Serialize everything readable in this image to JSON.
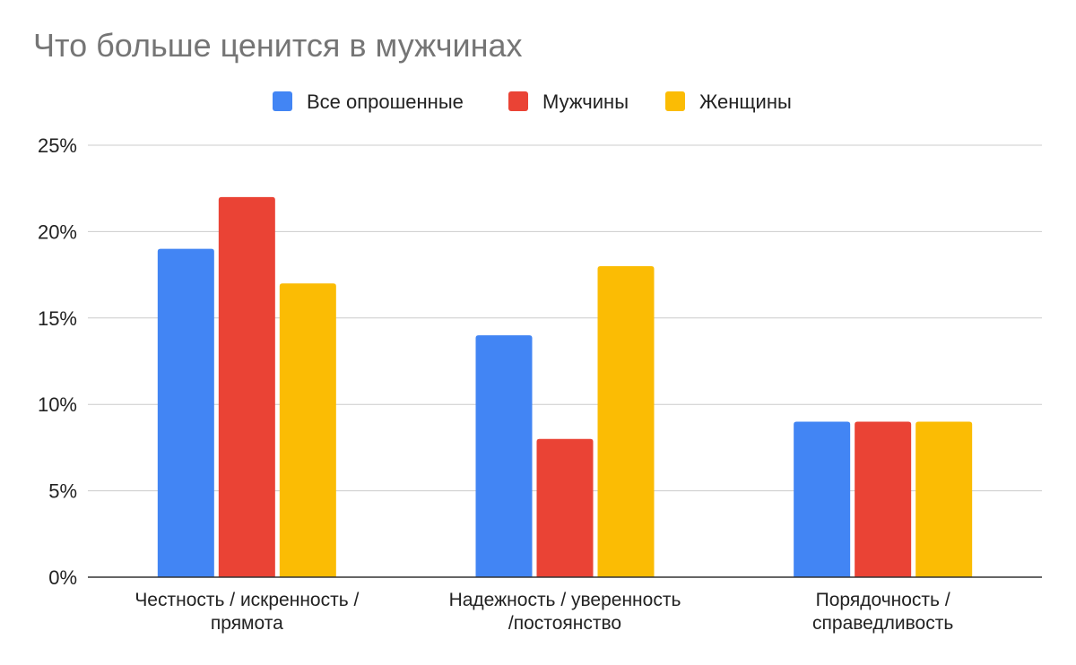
{
  "chart_data": {
    "type": "bar",
    "title": "Что больше ценится в мужчинах",
    "xlabel": "",
    "ylabel": "",
    "categories": [
      [
        "Честность / искренность /",
        "прямота"
      ],
      [
        "Надежность / уверенность",
        "/постоянство"
      ],
      [
        "Порядочность /",
        "справедливость"
      ]
    ],
    "series": [
      {
        "name": "Все опрошенные",
        "color": "#4285F4",
        "values": [
          19,
          14,
          9
        ]
      },
      {
        "name": "Мужчины",
        "color": "#EA4335",
        "values": [
          22,
          8,
          9
        ]
      },
      {
        "name": "Женщины",
        "color": "#FBBC04",
        "values": [
          17,
          18,
          9
        ]
      }
    ],
    "ylim": [
      0,
      25
    ],
    "yticks": [
      0,
      5,
      10,
      15,
      20,
      25
    ],
    "ytick_labels": [
      "0%",
      "5%",
      "10%",
      "15%",
      "20%",
      "25%"
    ],
    "grid": true,
    "legend_position": "top-center"
  }
}
